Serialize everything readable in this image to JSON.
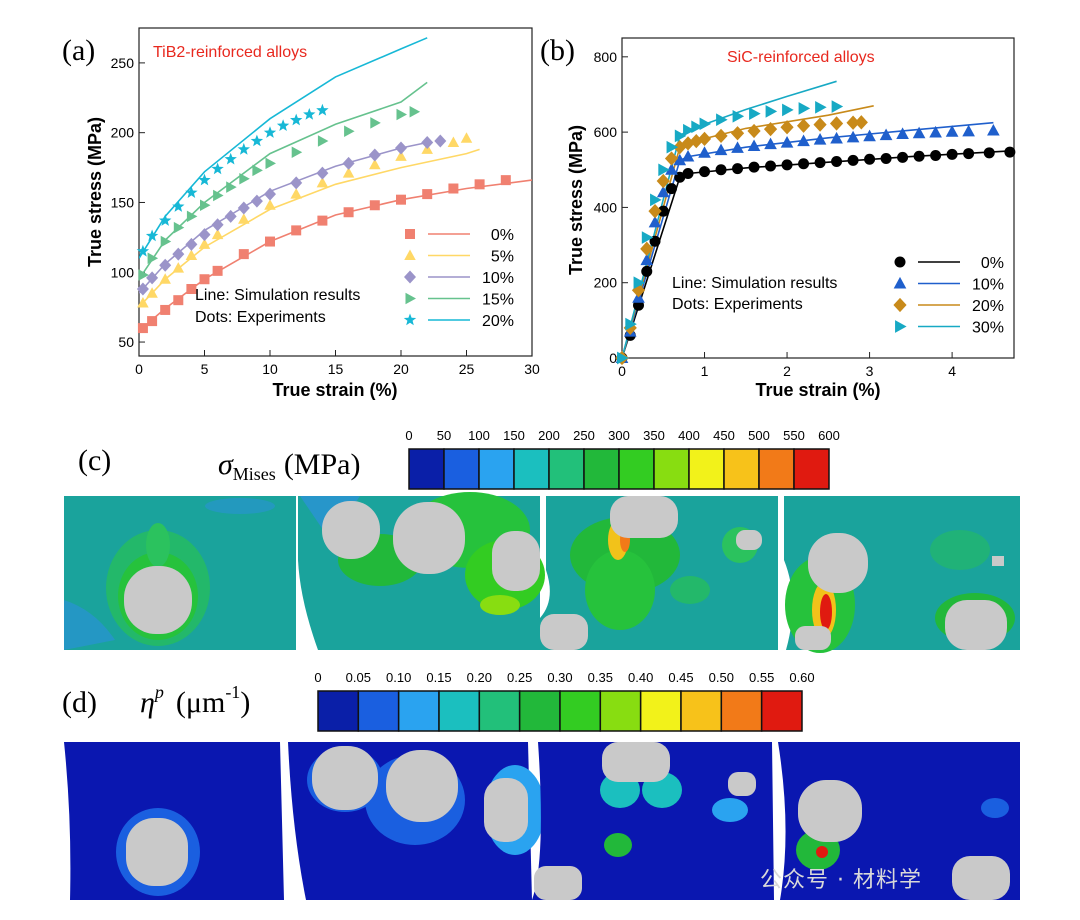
{
  "figure": {
    "panel_labels": [
      "(a)",
      "(b)",
      "(c)",
      "(d)"
    ],
    "watermark": "公众号 · 材料学"
  },
  "chart_data": [
    {
      "type": "scatter",
      "panel": "(a)",
      "title": "TiB2-reinforced alloys",
      "xlabel": "True strain (%)",
      "ylabel": "True stress (MPa)",
      "xlim": [
        0,
        30
      ],
      "ylim": [
        40,
        275
      ],
      "xticks": [
        0,
        5,
        10,
        15,
        20,
        25,
        30
      ],
      "yticks": [
        50,
        100,
        150,
        200,
        250
      ],
      "legend_position": "bottom-right",
      "notes": [
        "Line:  Simulation results",
        "Dots: Experiments"
      ],
      "series": [
        {
          "name": "0%",
          "color": "#f08070",
          "marker": "square",
          "points": [
            [
              0.3,
              60
            ],
            [
              1,
              65
            ],
            [
              2,
              73
            ],
            [
              3,
              80
            ],
            [
              4,
              88
            ],
            [
              5,
              95
            ],
            [
              6,
              101
            ],
            [
              8,
              113
            ],
            [
              10,
              122
            ],
            [
              12,
              130
            ],
            [
              14,
              137
            ],
            [
              16,
              143
            ],
            [
              18,
              148
            ],
            [
              20,
              152
            ],
            [
              22,
              156
            ],
            [
              24,
              160
            ],
            [
              26,
              163
            ],
            [
              28,
              166
            ]
          ],
          "line": [
            [
              0,
              58
            ],
            [
              2,
              74
            ],
            [
              5,
              95
            ],
            [
              10,
              122
            ],
            [
              15,
              141
            ],
            [
              20,
              152
            ],
            [
              25,
              160
            ],
            [
              30,
              166
            ]
          ]
        },
        {
          "name": "5%",
          "color": "#ffd866",
          "marker": "triangle",
          "points": [
            [
              0.3,
              78
            ],
            [
              1,
              85
            ],
            [
              2,
              95
            ],
            [
              3,
              103
            ],
            [
              4,
              112
            ],
            [
              5,
              120
            ],
            [
              6,
              127
            ],
            [
              8,
              138
            ],
            [
              10,
              148
            ],
            [
              12,
              156
            ],
            [
              14,
              164
            ],
            [
              16,
              171
            ],
            [
              18,
              177
            ],
            [
              20,
              183
            ],
            [
              22,
              188
            ],
            [
              24,
              193
            ],
            [
              25,
              196
            ]
          ],
          "line": [
            [
              0,
              75
            ],
            [
              2,
              95
            ],
            [
              5,
              118
            ],
            [
              10,
              145
            ],
            [
              15,
              163
            ],
            [
              20,
              175
            ],
            [
              25,
              185
            ],
            [
              26,
              188
            ]
          ]
        },
        {
          "name": "10%",
          "color": "#9b94c9",
          "marker": "diamond",
          "points": [
            [
              0.3,
              88
            ],
            [
              1,
              96
            ],
            [
              2,
              105
            ],
            [
              3,
              113
            ],
            [
              4,
              120
            ],
            [
              5,
              127
            ],
            [
              6,
              134
            ],
            [
              7,
              140
            ],
            [
              8,
              146
            ],
            [
              9,
              151
            ],
            [
              10,
              156
            ],
            [
              12,
              164
            ],
            [
              14,
              171
            ],
            [
              16,
              178
            ],
            [
              18,
              184
            ],
            [
              20,
              189
            ],
            [
              22,
              193
            ],
            [
              23,
              194
            ]
          ],
          "line": [
            [
              0,
              85
            ],
            [
              2,
              106
            ],
            [
              5,
              130
            ],
            [
              10,
              158
            ],
            [
              15,
              176
            ],
            [
              20,
              189
            ],
            [
              22,
              193
            ]
          ]
        },
        {
          "name": "15%",
          "color": "#66c28e",
          "marker": "right-triangle",
          "points": [
            [
              0.3,
              98
            ],
            [
              1,
              110
            ],
            [
              2,
              122
            ],
            [
              3,
              132
            ],
            [
              4,
              140
            ],
            [
              5,
              148
            ],
            [
              6,
              155
            ],
            [
              7,
              161
            ],
            [
              8,
              167
            ],
            [
              9,
              173
            ],
            [
              10,
              178
            ],
            [
              12,
              186
            ],
            [
              14,
              194
            ],
            [
              16,
              201
            ],
            [
              18,
              207
            ],
            [
              20,
              213
            ],
            [
              21,
              215
            ]
          ],
          "line": [
            [
              0,
              95
            ],
            [
              2,
              123
            ],
            [
              5,
              150
            ],
            [
              10,
              185
            ],
            [
              15,
              206
            ],
            [
              20,
              222
            ],
            [
              22,
              236
            ]
          ]
        },
        {
          "name": "20%",
          "color": "#17b8d6",
          "marker": "star",
          "points": [
            [
              0.3,
              115
            ],
            [
              1,
              126
            ],
            [
              2,
              137
            ],
            [
              3,
              147
            ],
            [
              4,
              157
            ],
            [
              5,
              166
            ],
            [
              6,
              174
            ],
            [
              7,
              181
            ],
            [
              8,
              188
            ],
            [
              9,
              194
            ],
            [
              10,
              200
            ],
            [
              11,
              205
            ],
            [
              12,
              209
            ],
            [
              13,
              213
            ],
            [
              14,
              216
            ]
          ],
          "line": [
            [
              0,
              110
            ],
            [
              2,
              140
            ],
            [
              5,
              172
            ],
            [
              10,
              210
            ],
            [
              15,
              240
            ],
            [
              20,
              260
            ],
            [
              22,
              268
            ]
          ]
        }
      ]
    },
    {
      "type": "scatter",
      "panel": "(b)",
      "title": "SiC-reinforced alloys",
      "xlabel": "True strain (%)",
      "ylabel": "True stress (MPa)",
      "xlim": [
        0,
        4.75
      ],
      "ylim": [
        0,
        850
      ],
      "xticks": [
        0,
        1,
        2,
        3,
        4
      ],
      "yticks": [
        0,
        200,
        400,
        600,
        800
      ],
      "legend_position": "bottom-right",
      "notes": [
        "Line: Simulation results",
        "Dots: Experiments"
      ],
      "series": [
        {
          "name": "0%",
          "color": "#000000",
          "marker": "circle",
          "points": [
            [
              0,
              0
            ],
            [
              0.1,
              60
            ],
            [
              0.2,
              140
            ],
            [
              0.3,
              230
            ],
            [
              0.4,
              310
            ],
            [
              0.5,
              390
            ],
            [
              0.6,
              450
            ],
            [
              0.7,
              480
            ],
            [
              0.8,
              490
            ],
            [
              1.0,
              495
            ],
            [
              1.2,
              500
            ],
            [
              1.4,
              503
            ],
            [
              1.6,
              507
            ],
            [
              1.8,
              510
            ],
            [
              2.0,
              513
            ],
            [
              2.2,
              516
            ],
            [
              2.4,
              519
            ],
            [
              2.6,
              522
            ],
            [
              2.8,
              525
            ],
            [
              3.0,
              528
            ],
            [
              3.2,
              530
            ],
            [
              3.4,
              533
            ],
            [
              3.6,
              536
            ],
            [
              3.8,
              538
            ],
            [
              4.0,
              541
            ],
            [
              4.2,
              543
            ],
            [
              4.45,
              545
            ],
            [
              4.7,
              547
            ]
          ],
          "line": [
            [
              0,
              0
            ],
            [
              0.7,
              480
            ],
            [
              0.8,
              490
            ],
            [
              1.5,
              505
            ],
            [
              2.5,
              520
            ],
            [
              3.5,
              535
            ],
            [
              4.7,
              550
            ]
          ]
        },
        {
          "name": "10%",
          "color": "#1f5fcc",
          "marker": "triangle",
          "points": [
            [
              0,
              0
            ],
            [
              0.1,
              70
            ],
            [
              0.2,
              160
            ],
            [
              0.3,
              260
            ],
            [
              0.4,
              360
            ],
            [
              0.5,
              440
            ],
            [
              0.6,
              500
            ],
            [
              0.7,
              525
            ],
            [
              0.8,
              535
            ],
            [
              1.0,
              545
            ],
            [
              1.2,
              552
            ],
            [
              1.4,
              558
            ],
            [
              1.6,
              563
            ],
            [
              1.8,
              568
            ],
            [
              2.0,
              572
            ],
            [
              2.2,
              576
            ],
            [
              2.4,
              580
            ],
            [
              2.6,
              583
            ],
            [
              2.8,
              586
            ],
            [
              3.0,
              589
            ],
            [
              3.2,
              592
            ],
            [
              3.4,
              595
            ],
            [
              3.6,
              597
            ],
            [
              3.8,
              599
            ],
            [
              4.0,
              601
            ],
            [
              4.2,
              602
            ],
            [
              4.5,
              604
            ]
          ],
          "line": [
            [
              0,
              0
            ],
            [
              0.7,
              525
            ],
            [
              0.8,
              535
            ],
            [
              1.5,
              560
            ],
            [
              2.5,
              585
            ],
            [
              3.5,
              605
            ],
            [
              4.5,
              625
            ]
          ]
        },
        {
          "name": "20%",
          "color": "#c88a1a",
          "marker": "diamond",
          "points": [
            [
              0,
              0
            ],
            [
              0.1,
              80
            ],
            [
              0.2,
              180
            ],
            [
              0.3,
              290
            ],
            [
              0.4,
              390
            ],
            [
              0.5,
              470
            ],
            [
              0.6,
              530
            ],
            [
              0.7,
              560
            ],
            [
              0.8,
              570
            ],
            [
              0.9,
              576
            ],
            [
              1.0,
              582
            ],
            [
              1.2,
              590
            ],
            [
              1.4,
              597
            ],
            [
              1.6,
              603
            ],
            [
              1.8,
              608
            ],
            [
              2.0,
              613
            ],
            [
              2.2,
              617
            ],
            [
              2.4,
              620
            ],
            [
              2.6,
              623
            ],
            [
              2.8,
              625
            ],
            [
              2.9,
              626
            ]
          ],
          "line": [
            [
              0,
              0
            ],
            [
              0.7,
              560
            ],
            [
              0.8,
              572
            ],
            [
              1.5,
              610
            ],
            [
              2.5,
              645
            ],
            [
              3.05,
              670
            ]
          ]
        },
        {
          "name": "30%",
          "color": "#17a9c4",
          "marker": "right-triangle",
          "points": [
            [
              0,
              0
            ],
            [
              0.1,
              90
            ],
            [
              0.2,
              200
            ],
            [
              0.3,
              320
            ],
            [
              0.4,
              420
            ],
            [
              0.5,
              500
            ],
            [
              0.6,
              560
            ],
            [
              0.7,
              590
            ],
            [
              0.8,
              605
            ],
            [
              0.9,
              614
            ],
            [
              1.0,
              622
            ],
            [
              1.2,
              633
            ],
            [
              1.4,
              642
            ],
            [
              1.6,
              649
            ],
            [
              1.8,
              655
            ],
            [
              2.0,
              659
            ],
            [
              2.2,
              663
            ],
            [
              2.4,
              666
            ],
            [
              2.6,
              668
            ]
          ],
          "line": [
            [
              0,
              0
            ],
            [
              0.7,
              590
            ],
            [
              0.8,
              605
            ],
            [
              1.5,
              660
            ],
            [
              2.0,
              695
            ],
            [
              2.6,
              735
            ]
          ]
        }
      ]
    },
    {
      "type": "heatmap",
      "panel": "(c)",
      "title": "σ_Mises (MPa)",
      "symbol": "σ",
      "subscript": "Mises",
      "unit": "(MPa)",
      "colorbar_ticks": [
        "0",
        "50",
        "100",
        "150",
        "200",
        "250",
        "300",
        "350",
        "400",
        "450",
        "500",
        "550",
        "600"
      ]
    },
    {
      "type": "heatmap",
      "panel": "(d)",
      "title": "η^p (μm^-1)",
      "symbol": "η",
      "superscript": "p",
      "unit_base": "(μm",
      "unit_exp": "-1",
      "unit_close": ")",
      "colorbar_ticks": [
        "0",
        "0.05",
        "0.10",
        "0.15",
        "0.20",
        "0.25",
        "0.30",
        "0.35",
        "0.40",
        "0.45",
        "0.50",
        "0.55",
        "0.60"
      ]
    }
  ],
  "colors": {
    "colorbar": [
      "#0a1fa8",
      "#1a5fe0",
      "#2aa3f0",
      "#1bbfbf",
      "#22c07a",
      "#22b83a",
      "#33cc22",
      "#88dd11",
      "#f2f21a",
      "#f7c21a",
      "#f27a18",
      "#e01a10"
    ],
    "contour_bg_c": "#1aa39c",
    "contour_bg_d": "#0a17b0",
    "particle": "#c9c9c9",
    "title_red": "#e8281e"
  }
}
